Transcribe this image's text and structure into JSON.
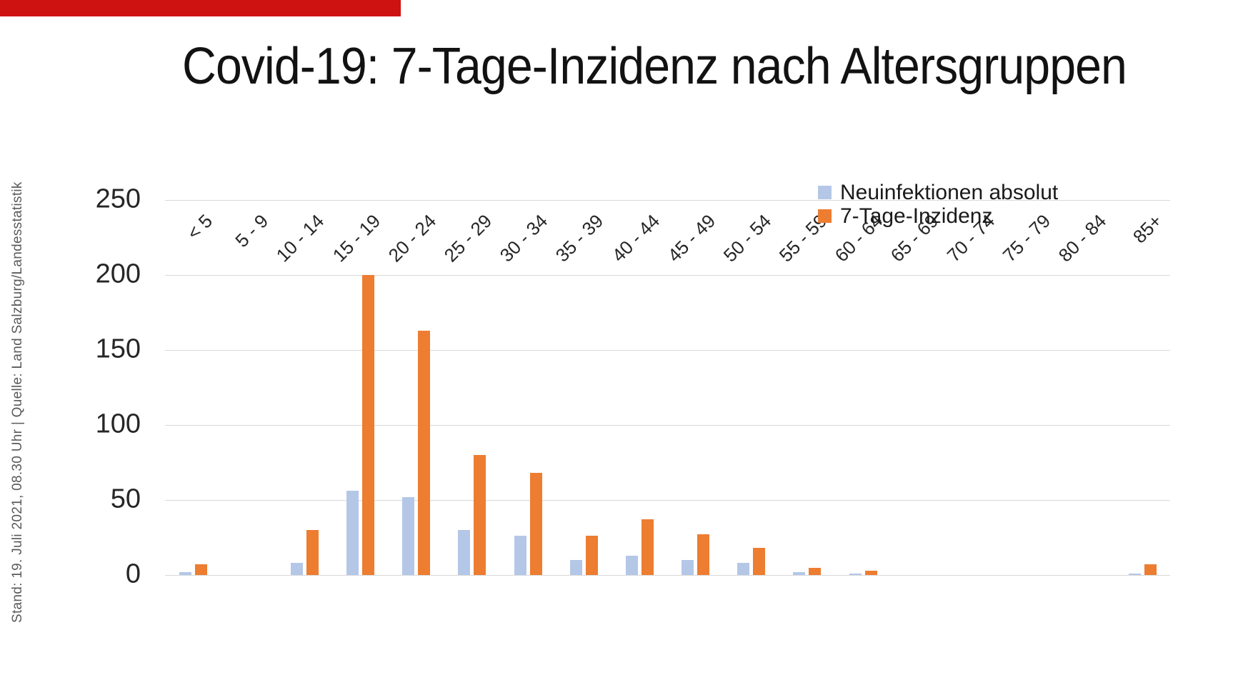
{
  "brand": {
    "bar_color": "#CE1212"
  },
  "title": "Covid-19: 7-Tage-Inzidenz nach Altersgruppen",
  "source_note": "Stand: 19. Juli 2021, 08.30 Uhr | Quelle: Land Salzburg/Landesstatistik",
  "colors": {
    "gridline": "#d9d9d9",
    "axis_text": "#262626"
  },
  "chart_data": {
    "type": "bar",
    "title": "Covid-19: 7-Tage-Inzidenz nach Altersgruppen",
    "categories": [
      "< 5",
      "5 - 9",
      "10 - 14",
      "15 - 19",
      "20 - 24",
      "25 - 29",
      "30 - 34",
      "35 - 39",
      "40 - 44",
      "45 - 49",
      "50 - 54",
      "55 - 59",
      "60 - 64",
      "65 - 69",
      "70 - 74",
      "75 - 79",
      "80 - 84",
      "85+"
    ],
    "series": [
      {
        "name": "Neuinfektionen absolut",
        "color": "#B4C7E7",
        "values": [
          2,
          0,
          8,
          56,
          52,
          30,
          26,
          10,
          13,
          10,
          8,
          2,
          1,
          0,
          0,
          0,
          0,
          1
        ]
      },
      {
        "name": "7-Tage-Inzidenz",
        "color": "#ED7D31",
        "values": [
          7,
          0,
          30,
          200,
          163,
          80,
          68,
          26,
          37,
          27,
          18,
          5,
          3,
          0,
          0,
          0,
          0,
          7
        ]
      }
    ],
    "xlabel": "",
    "ylabel": "",
    "ylim": [
      0,
      250
    ],
    "yticks": [
      0,
      50,
      100,
      150,
      200,
      250
    ],
    "grid": "horizontal",
    "legend_position": "top-right"
  }
}
